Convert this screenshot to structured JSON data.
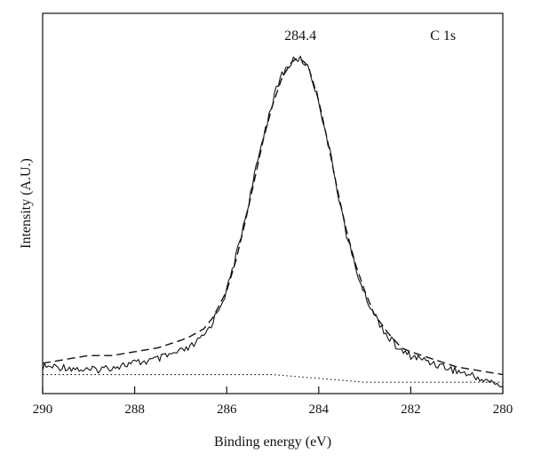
{
  "chart_data": {
    "type": "line",
    "title": "",
    "xlabel": "Binding energy (eV)",
    "ylabel": "Intensity (A.U.)",
    "x_axis_reversed": true,
    "xlim": [
      290,
      280
    ],
    "ylim": [
      0,
      1
    ],
    "y_ticks_shown": false,
    "grid": false,
    "legend": "none",
    "x_ticks": [
      "290",
      "288",
      "286",
      "284",
      "282",
      "280"
    ],
    "annotations": [
      {
        "text": "284.4",
        "x": 284.4,
        "y": 0.93
      },
      {
        "text": "C 1s",
        "x": 281.3,
        "y": 0.93
      }
    ],
    "peak": {
      "position": 284.4,
      "intensity": 0.88
    },
    "series": [
      {
        "style": "solid",
        "description_role": "measured",
        "x": [
          290.0,
          289.5,
          289.0,
          288.5,
          288.0,
          287.5,
          287.0,
          286.8,
          286.5,
          286.3,
          286.0,
          285.8,
          285.6,
          285.4,
          285.2,
          285.0,
          284.8,
          284.6,
          284.5,
          284.4,
          284.3,
          284.2,
          284.0,
          283.8,
          283.6,
          283.4,
          283.2,
          283.0,
          282.8,
          282.5,
          282.2,
          282.0,
          281.5,
          281.0,
          280.5,
          280.0
        ],
        "y": [
          0.07,
          0.07,
          0.06,
          0.07,
          0.08,
          0.09,
          0.11,
          0.12,
          0.15,
          0.19,
          0.27,
          0.36,
          0.46,
          0.57,
          0.68,
          0.77,
          0.84,
          0.87,
          0.88,
          0.88,
          0.87,
          0.85,
          0.77,
          0.66,
          0.54,
          0.42,
          0.33,
          0.26,
          0.21,
          0.15,
          0.11,
          0.1,
          0.08,
          0.06,
          0.04,
          0.02
        ]
      },
      {
        "style": "dashed",
        "description_role": "fit",
        "x": [
          290.0,
          289.5,
          289.0,
          288.5,
          288.0,
          287.5,
          287.0,
          286.8,
          286.5,
          286.3,
          286.0,
          285.8,
          285.6,
          285.4,
          285.2,
          285.0,
          284.8,
          284.6,
          284.5,
          284.4,
          284.3,
          284.2,
          284.0,
          283.8,
          283.6,
          283.4,
          283.2,
          283.0,
          282.8,
          282.5,
          282.2,
          282.0,
          281.5,
          281.0,
          280.5,
          280.0
        ],
        "y": [
          0.08,
          0.09,
          0.1,
          0.1,
          0.11,
          0.12,
          0.14,
          0.15,
          0.17,
          0.2,
          0.27,
          0.35,
          0.45,
          0.56,
          0.67,
          0.76,
          0.83,
          0.87,
          0.88,
          0.88,
          0.87,
          0.85,
          0.77,
          0.66,
          0.54,
          0.43,
          0.34,
          0.27,
          0.21,
          0.16,
          0.12,
          0.11,
          0.09,
          0.07,
          0.06,
          0.05
        ]
      },
      {
        "style": "dotted",
        "description_role": "background",
        "x": [
          290.0,
          289.0,
          288.0,
          287.0,
          286.0,
          285.0,
          284.0,
          283.0,
          282.0,
          281.0,
          280.0
        ],
        "y": [
          0.05,
          0.05,
          0.05,
          0.05,
          0.05,
          0.05,
          0.04,
          0.03,
          0.03,
          0.03,
          0.03
        ]
      }
    ]
  }
}
